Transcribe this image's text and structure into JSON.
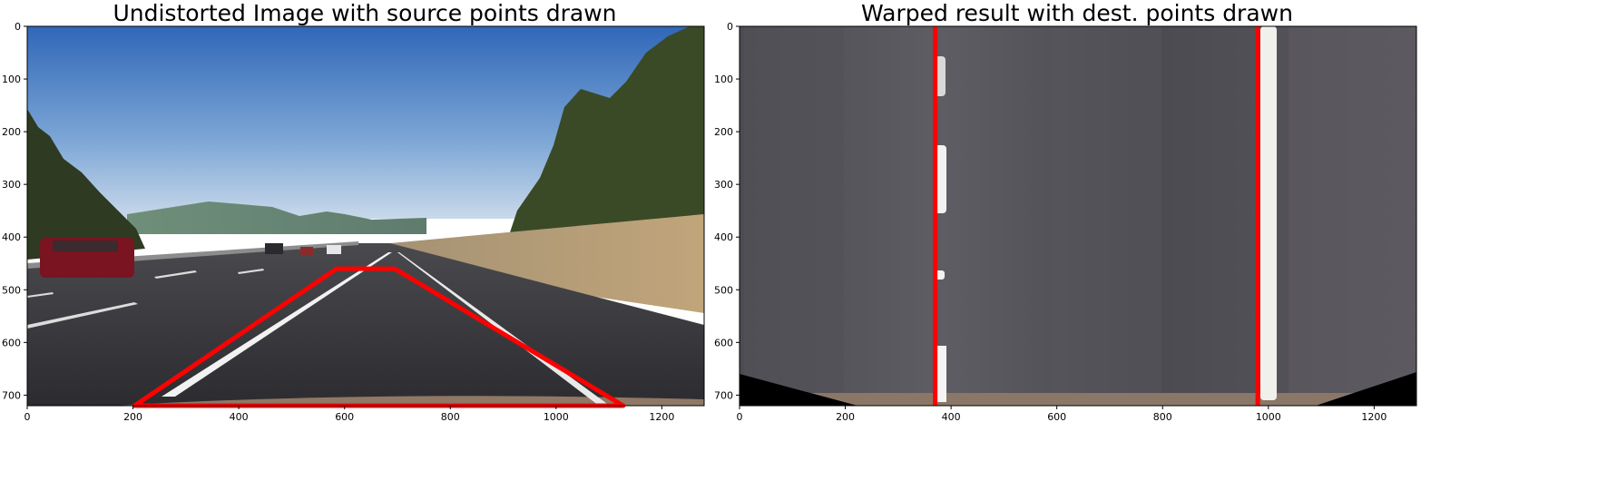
{
  "chart_data": [
    {
      "type": "image",
      "title": "Undistorted Image with source points drawn",
      "xlim": [
        0,
        1280
      ],
      "ylim": [
        720,
        0
      ],
      "xticks": [
        0,
        200,
        400,
        600,
        800,
        1000,
        1200
      ],
      "yticks": [
        0,
        100,
        200,
        300,
        400,
        500,
        600,
        700
      ],
      "overlay": {
        "color": "#ff0000",
        "closed": true,
        "points": [
          [
            585,
            460
          ],
          [
            203,
            720
          ],
          [
            1127,
            720
          ],
          [
            695,
            460
          ]
        ]
      }
    },
    {
      "type": "image",
      "title": "Warped result with dest. points drawn",
      "xlim": [
        0,
        1280
      ],
      "ylim": [
        720,
        0
      ],
      "xticks": [
        0,
        200,
        400,
        600,
        800,
        1000,
        1200
      ],
      "yticks": [
        0,
        100,
        200,
        300,
        400,
        500,
        600,
        700
      ],
      "overlay": {
        "color": "#ff0000",
        "lines": [
          {
            "x": 370,
            "y0": 0,
            "y1": 720
          },
          {
            "x": 980,
            "y0": 0,
            "y1": 720
          }
        ]
      }
    }
  ]
}
